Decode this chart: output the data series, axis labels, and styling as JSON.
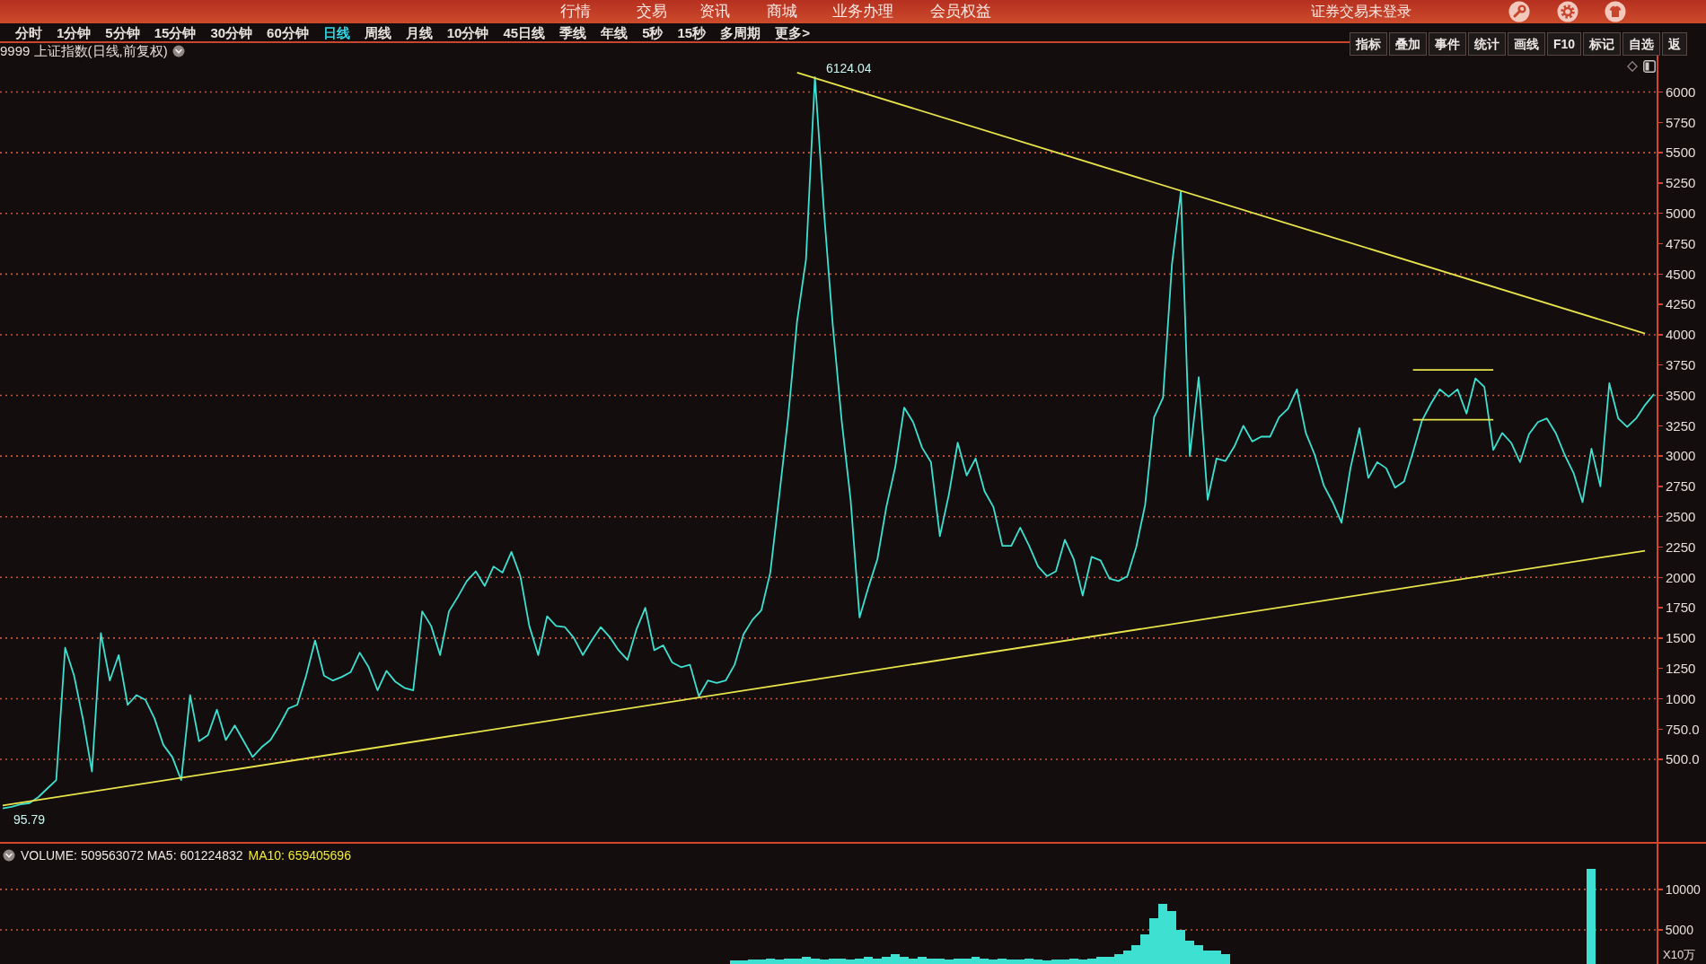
{
  "chart_data": [
    {
      "type": "line",
      "title": "9999 上证指数(日线,前复权)",
      "categories": [
        null,
        null,
        null,
        null,
        null,
        null,
        null,
        null,
        null,
        null,
        null,
        null,
        null,
        null,
        null,
        null,
        null,
        null,
        null,
        null,
        null,
        null,
        null,
        null,
        null,
        null,
        null,
        null,
        null,
        null,
        null,
        null,
        null,
        null,
        null,
        null,
        null,
        null,
        null,
        null,
        null,
        null,
        null,
        null,
        null,
        null,
        null,
        null,
        null,
        null,
        null,
        null,
        null,
        null,
        null,
        null,
        null,
        null,
        null,
        null,
        null,
        null,
        null,
        null,
        null,
        null,
        null,
        null,
        null,
        null,
        null,
        null,
        null,
        null,
        null,
        null,
        null,
        null,
        null,
        null,
        null,
        null,
        null,
        null,
        null,
        null,
        null,
        null,
        null,
        null,
        null,
        null,
        null,
        null,
        null,
        null,
        null,
        null,
        null,
        null,
        null,
        null,
        null,
        null,
        null,
        null,
        null,
        null,
        null,
        null,
        null,
        null,
        null,
        null,
        null,
        null,
        null,
        null,
        null,
        null,
        null,
        null,
        null,
        null,
        null,
        null,
        null,
        null,
        null,
        null,
        null,
        null,
        null,
        null,
        null,
        null,
        null,
        null,
        null,
        null,
        null,
        null,
        null,
        null,
        null,
        null,
        null,
        null,
        null,
        null,
        null,
        null,
        null,
        null,
        null,
        null,
        null,
        null,
        null,
        null,
        null,
        null,
        null,
        null,
        null,
        null,
        null,
        null,
        null,
        null,
        null,
        null,
        null,
        null,
        null,
        null,
        null,
        null,
        null,
        null,
        null,
        null,
        null,
        null,
        null,
        null
      ],
      "series": [
        {
          "color": "#3ee0d2",
          "values": [
            95.79,
            110,
            130,
            140,
            190,
            260,
            330,
            1420,
            1190,
            830,
            400,
            1540,
            1150,
            1360,
            950,
            1030,
            990,
            840,
            620,
            520,
            330,
            1030,
            650,
            700,
            910,
            660,
            780,
            650,
            520,
            600,
            660,
            780,
            920,
            950,
            1190,
            1480,
            1190,
            1150,
            1180,
            1220,
            1380,
            1260,
            1070,
            1230,
            1140,
            1090,
            1070,
            1720,
            1600,
            1360,
            1720,
            1840,
            1970,
            2050,
            1930,
            2090,
            2040,
            2210,
            2010,
            1600,
            1360,
            1680,
            1600,
            1590,
            1500,
            1360,
            1480,
            1590,
            1510,
            1400,
            1320,
            1570,
            1750,
            1400,
            1440,
            1300,
            1260,
            1280,
            1020,
            1150,
            1130,
            1150,
            1280,
            1530,
            1650,
            1730,
            2040,
            2670,
            3320,
            4110,
            4620,
            6124.04,
            5030,
            4080,
            3290,
            2640,
            1670,
            1920,
            2150,
            2580,
            2910,
            3400,
            3280,
            3070,
            2950,
            2340,
            2680,
            3110,
            2840,
            2980,
            2710,
            2580,
            2260,
            2260,
            2410,
            2260,
            2090,
            2010,
            2050,
            2310,
            2150,
            1850,
            2170,
            2140,
            1990,
            1970,
            2010,
            2250,
            2600,
            3320,
            3480,
            4580,
            5180,
            3000,
            3650,
            2640,
            2980,
            2960,
            3080,
            3250,
            3120,
            3160,
            3160,
            3320,
            3390,
            3550,
            3190,
            3010,
            2760,
            2620,
            2450,
            2900,
            3230,
            2820,
            2950,
            2900,
            2740,
            2790,
            3030,
            3290,
            3430,
            3550,
            3490,
            3550,
            3350,
            3640,
            3570,
            3050,
            3190,
            3110,
            2950,
            3180,
            3280,
            3310,
            3190,
            3010,
            2860,
            2620,
            3060,
            2750,
            3600,
            3310,
            3240,
            3310,
            3420,
            3510
          ]
        },
        {
          "type": "line",
          "color": "#e8e34a",
          "values": [
            null,
            null,
            null,
            null,
            null,
            null,
            null,
            null,
            null,
            null,
            null,
            null,
            null,
            null,
            null,
            null,
            null,
            null,
            null,
            null,
            null,
            null,
            null,
            null,
            null,
            null,
            null,
            null,
            null,
            null,
            null,
            null,
            null,
            null,
            null,
            null,
            null,
            null,
            null,
            null,
            null,
            null,
            null,
            null,
            null,
            null,
            null,
            null,
            null,
            null,
            null,
            null,
            null,
            null,
            null,
            null,
            null,
            null,
            null,
            null,
            null,
            null,
            null,
            null,
            null,
            null,
            null,
            null,
            null,
            null,
            null,
            null,
            null,
            null,
            null,
            null,
            null,
            null,
            null,
            null,
            null,
            null,
            null,
            null,
            null,
            null,
            null,
            null,
            null,
            6160,
            null,
            null,
            null,
            null,
            null,
            null,
            null,
            null,
            null,
            null,
            null,
            null,
            null,
            null,
            null,
            null,
            null,
            null,
            null,
            null,
            null,
            null,
            null,
            null,
            null,
            null,
            null,
            null,
            null,
            null,
            null,
            null,
            null,
            null,
            null,
            null,
            null,
            null,
            null,
            null,
            null,
            null,
            null,
            null,
            null,
            null,
            null,
            null,
            null,
            null,
            null,
            null,
            null,
            null,
            null,
            null,
            null,
            null,
            null,
            null,
            null,
            null,
            null,
            null,
            null,
            null,
            null,
            null,
            null,
            null,
            null,
            null,
            null,
            null,
            null,
            null,
            null,
            null,
            null,
            null,
            null,
            null,
            null,
            null,
            null,
            null,
            null,
            null,
            null,
            null,
            null,
            null,
            null,
            null,
            4010,
            null
          ]
        },
        {
          "type": "line",
          "color": "#e8e34a",
          "values": [
            120,
            null,
            null,
            null,
            null,
            null,
            null,
            null,
            null,
            null,
            null,
            null,
            null,
            null,
            null,
            null,
            null,
            null,
            null,
            null,
            null,
            null,
            null,
            null,
            null,
            null,
            null,
            null,
            null,
            null,
            null,
            null,
            null,
            null,
            null,
            null,
            null,
            null,
            null,
            null,
            null,
            null,
            null,
            null,
            null,
            null,
            null,
            null,
            null,
            null,
            null,
            null,
            null,
            null,
            null,
            null,
            null,
            null,
            null,
            null,
            null,
            null,
            null,
            null,
            null,
            null,
            null,
            null,
            null,
            null,
            null,
            null,
            null,
            null,
            null,
            null,
            null,
            null,
            null,
            null,
            null,
            null,
            null,
            null,
            null,
            null,
            null,
            null,
            null,
            null,
            null,
            null,
            null,
            null,
            null,
            null,
            null,
            null,
            null,
            null,
            null,
            null,
            null,
            null,
            null,
            null,
            null,
            null,
            null,
            null,
            null,
            null,
            null,
            null,
            null,
            null,
            null,
            null,
            null,
            null,
            null,
            null,
            null,
            null,
            null,
            null,
            null,
            null,
            null,
            null,
            null,
            null,
            null,
            null,
            null,
            null,
            null,
            null,
            null,
            null,
            null,
            null,
            null,
            null,
            null,
            null,
            null,
            null,
            null,
            null,
            null,
            null,
            null,
            null,
            null,
            null,
            null,
            null,
            null,
            null,
            null,
            null,
            null,
            null,
            null,
            null,
            null,
            null,
            null,
            null,
            null,
            null,
            null,
            null,
            null,
            null,
            null,
            null,
            null,
            null,
            null,
            null,
            null,
            null,
            2220,
            null
          ]
        },
        {
          "type": "line",
          "color": "#e8e34a",
          "values": [
            null,
            null,
            null,
            null,
            null,
            null,
            null,
            null,
            null,
            null,
            null,
            null,
            null,
            null,
            null,
            null,
            null,
            null,
            null,
            null,
            null,
            null,
            null,
            null,
            null,
            null,
            null,
            null,
            null,
            null,
            null,
            null,
            null,
            null,
            null,
            null,
            null,
            null,
            null,
            null,
            null,
            null,
            null,
            null,
            null,
            null,
            null,
            null,
            null,
            null,
            null,
            null,
            null,
            null,
            null,
            null,
            null,
            null,
            null,
            null,
            null,
            null,
            null,
            null,
            null,
            null,
            null,
            null,
            null,
            null,
            null,
            null,
            null,
            null,
            null,
            null,
            null,
            null,
            null,
            null,
            null,
            null,
            null,
            null,
            null,
            null,
            null,
            null,
            null,
            null,
            null,
            null,
            null,
            null,
            null,
            null,
            null,
            null,
            null,
            null,
            null,
            null,
            null,
            null,
            null,
            null,
            null,
            null,
            null,
            null,
            null,
            null,
            null,
            null,
            null,
            null,
            null,
            null,
            null,
            null,
            null,
            null,
            null,
            null,
            null,
            null,
            null,
            null,
            null,
            null,
            null,
            null,
            null,
            null,
            null,
            null,
            null,
            null,
            null,
            null,
            null,
            null,
            null,
            null,
            null,
            null,
            null,
            null,
            null,
            null,
            null,
            null,
            null,
            null,
            null,
            null,
            null,
            null,
            3710,
            null,
            null,
            null,
            null,
            null,
            null,
            null,
            null,
            3710,
            null,
            null,
            null,
            null,
            null,
            null,
            null,
            null,
            null,
            null,
            null,
            null,
            null,
            null,
            null,
            null,
            null,
            null
          ]
        },
        {
          "type": "line",
          "color": "#e8e34a",
          "values": [
            null,
            null,
            null,
            null,
            null,
            null,
            null,
            null,
            null,
            null,
            null,
            null,
            null,
            null,
            null,
            null,
            null,
            null,
            null,
            null,
            null,
            null,
            null,
            null,
            null,
            null,
            null,
            null,
            null,
            null,
            null,
            null,
            null,
            null,
            null,
            null,
            null,
            null,
            null,
            null,
            null,
            null,
            null,
            null,
            null,
            null,
            null,
            null,
            null,
            null,
            null,
            null,
            null,
            null,
            null,
            null,
            null,
            null,
            null,
            null,
            null,
            null,
            null,
            null,
            null,
            null,
            null,
            null,
            null,
            null,
            null,
            null,
            null,
            null,
            null,
            null,
            null,
            null,
            null,
            null,
            null,
            null,
            null,
            null,
            null,
            null,
            null,
            null,
            null,
            null,
            null,
            null,
            null,
            null,
            null,
            null,
            null,
            null,
            null,
            null,
            null,
            null,
            null,
            null,
            null,
            null,
            null,
            null,
            null,
            null,
            null,
            null,
            null,
            null,
            null,
            null,
            null,
            null,
            null,
            null,
            null,
            null,
            null,
            null,
            null,
            null,
            null,
            null,
            null,
            null,
            null,
            null,
            null,
            null,
            null,
            null,
            null,
            null,
            null,
            null,
            null,
            null,
            null,
            null,
            null,
            null,
            null,
            null,
            null,
            null,
            null,
            null,
            null,
            null,
            null,
            null,
            null,
            null,
            3300,
            null,
            null,
            null,
            null,
            null,
            null,
            null,
            null,
            3300,
            null,
            null,
            null,
            null,
            null,
            null,
            null,
            null,
            null,
            null,
            null,
            null,
            null,
            null,
            null,
            null,
            null,
            null
          ]
        }
      ],
      "ylim": [
        -180,
        6300
      ],
      "yticks": [
        {
          "value": 500,
          "label": "500.0"
        },
        {
          "value": 750,
          "label": "750.0"
        },
        1000,
        1250,
        1500,
        1750,
        2000,
        2250,
        2500,
        2750,
        3000,
        3250,
        3500,
        3750,
        4000,
        4250,
        4500,
        4750,
        5000,
        5250,
        5500,
        5750,
        6000
      ],
      "grid": "y",
      "tick_labels": "y",
      "annotations": [
        "行情 交易 资讯 商城 业务办理 会员权益",
        "证券交易未登录",
        "分时 1分钟 5分钟 15分钟 30分钟 60分钟 日线 周线 月线 10分钟 45日线 季线 年线 5秒 15秒 多周期 更多>",
        "指标 叠加 事件 统计 画线 F10 标记 自选 返",
        "6124.04",
        "95.79"
      ]
    },
    {
      "type": "bar",
      "categories": [
        null,
        null,
        null,
        null,
        null,
        null,
        null,
        null,
        null,
        null,
        null,
        null,
        null,
        null,
        null,
        null,
        null,
        null,
        null,
        null,
        null,
        null,
        null,
        null,
        null,
        null,
        null,
        null,
        null,
        null,
        null,
        null,
        null,
        null,
        null,
        null,
        null,
        null,
        null,
        null,
        null,
        null,
        null,
        null,
        null,
        null,
        null,
        null,
        null,
        null,
        null,
        null,
        null,
        null,
        null,
        null,
        null,
        null,
        null,
        null,
        null,
        null,
        null,
        null,
        null,
        null,
        null,
        null,
        null,
        null,
        null,
        null,
        null,
        null,
        null,
        null,
        null,
        null,
        null,
        null,
        null,
        null,
        null,
        null,
        null,
        null,
        null,
        null,
        null,
        null,
        null,
        null,
        null,
        null,
        null,
        null,
        null,
        null,
        null,
        null,
        null,
        null,
        null,
        null,
        null,
        null,
        null,
        null,
        null,
        null,
        null,
        null,
        null,
        null,
        null,
        null,
        null,
        null,
        null,
        null,
        null,
        null,
        null,
        null,
        null,
        null,
        null,
        null,
        null,
        null,
        null,
        null,
        null,
        null,
        null,
        null,
        null,
        null,
        null,
        null,
        null,
        null,
        null,
        null,
        null,
        null,
        null,
        null,
        null,
        null,
        null,
        null,
        null,
        null,
        null,
        null,
        null,
        null,
        null,
        null,
        null,
        null,
        null,
        null,
        null,
        null,
        null,
        null,
        null,
        null,
        null,
        null,
        null,
        null,
        null,
        null,
        null,
        null,
        null,
        null,
        null,
        null,
        null,
        null,
        null,
        null
      ],
      "values": [
        null,
        null,
        null,
        null,
        null,
        null,
        null,
        null,
        null,
        null,
        null,
        null,
        null,
        null,
        null,
        null,
        null,
        null,
        null,
        null,
        null,
        null,
        null,
        null,
        null,
        null,
        null,
        null,
        null,
        null,
        null,
        null,
        null,
        null,
        null,
        null,
        null,
        null,
        null,
        null,
        null,
        null,
        null,
        null,
        null,
        null,
        null,
        null,
        null,
        null,
        null,
        null,
        null,
        null,
        null,
        null,
        null,
        null,
        null,
        null,
        null,
        null,
        null,
        null,
        null,
        null,
        null,
        null,
        null,
        null,
        null,
        null,
        null,
        null,
        null,
        null,
        null,
        null,
        null,
        null,
        null,
        null,
        1200,
        1200,
        1300,
        1300,
        1400,
        1300,
        1400,
        1400,
        1700,
        1400,
        1300,
        1400,
        1400,
        1300,
        1400,
        1700,
        1400,
        1700,
        2000,
        1700,
        1400,
        1700,
        1400,
        1400,
        1300,
        1400,
        1400,
        1700,
        1400,
        1300,
        1400,
        1300,
        1300,
        1400,
        1300,
        1200,
        1300,
        1300,
        1400,
        1300,
        1400,
        1700,
        1700,
        2000,
        2400,
        3100,
        4400,
        6400,
        8200,
        7300,
        5000,
        3700,
        3100,
        2400,
        2400,
        2000,
        null,
        null,
        null,
        null,
        null,
        null,
        null,
        null,
        null,
        null,
        null,
        null,
        null,
        null,
        null,
        null,
        null,
        null,
        null,
        null,
        null,
        null,
        null,
        null,
        null,
        null,
        null,
        null,
        null,
        null,
        null,
        null,
        null,
        null,
        null,
        null,
        null,
        null,
        null,
        null,
        12500,
        null,
        null,
        null,
        null,
        null,
        null,
        null
      ],
      "color": "#3ee0d2",
      "ylabel": "X10万",
      "ylim": [
        780,
        15650
      ],
      "yticks": [
        5000,
        10000
      ],
      "grid": "y",
      "tick_labels": "y",
      "annotations": [
        "VOLUME: 509563072 MA5: 601224832",
        "MA10: 659405696"
      ]
    }
  ]
}
